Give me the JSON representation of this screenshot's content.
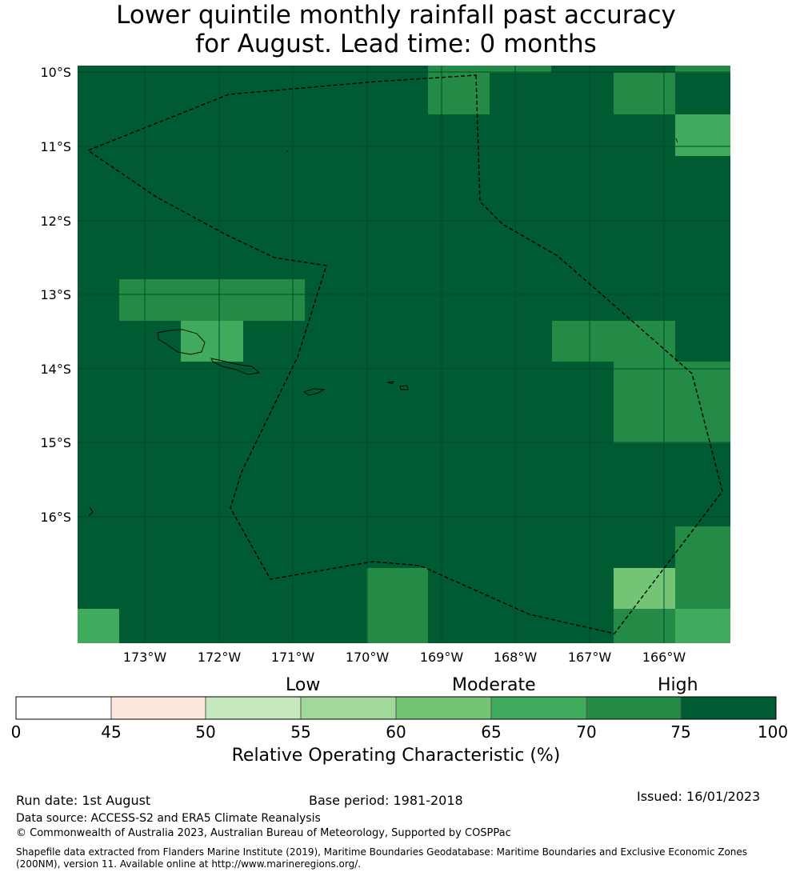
{
  "title": {
    "line1": "Lower quintile monthly rainfall past accuracy",
    "line2": "for August. Lead time: 0 months"
  },
  "map": {
    "lon_range": [
      -173.9,
      -165.2
    ],
    "lat_range": [
      -17.7,
      -10.0
    ],
    "lat_labels": [
      "10°S",
      "11°S",
      "12°S",
      "13°S",
      "14°S",
      "15°S",
      "16°S"
    ],
    "lon_labels": [
      "173°W",
      "172°W",
      "171°W",
      "170°W",
      "169°W",
      "168°W",
      "167°W",
      "166°W"
    ],
    "background_color": "#005a32",
    "grid_color": "#004a28"
  },
  "colorbar": {
    "categories": [
      "Low",
      "Moderate",
      "High"
    ],
    "ticks": [
      "0",
      "45",
      "50",
      "55",
      "60",
      "65",
      "70",
      "75",
      "100"
    ],
    "colors": [
      "#ffffff",
      "#fee8de",
      "#c7e9c0",
      "#a1d99b",
      "#74c476",
      "#41ab5d",
      "#238b45",
      "#005a32"
    ],
    "title": "Relative Operating Characteristic (%)"
  },
  "footer": {
    "run_date": "Run date: 1st August",
    "base_period": "Base period: 1981-2018",
    "issued": "Issued: 16/01/2023",
    "data_source": "Data source: ACCESS-S2 and ERA5 Climate Reanalysis",
    "copyright": "© Commonwealth of Australia 2023, Australian Bureau of Meteorology, Supported by COSPPac",
    "shapefile_line1": "Shapefile data extracted from Flanders Marine Institute (2019), Maritime Boundaries Geodatabase: Maritime Boundaries and Exclusive Economic Zones",
    "shapefile_line2": "(200NM), version 11. Available online at http://www.marineregions.org/."
  }
}
